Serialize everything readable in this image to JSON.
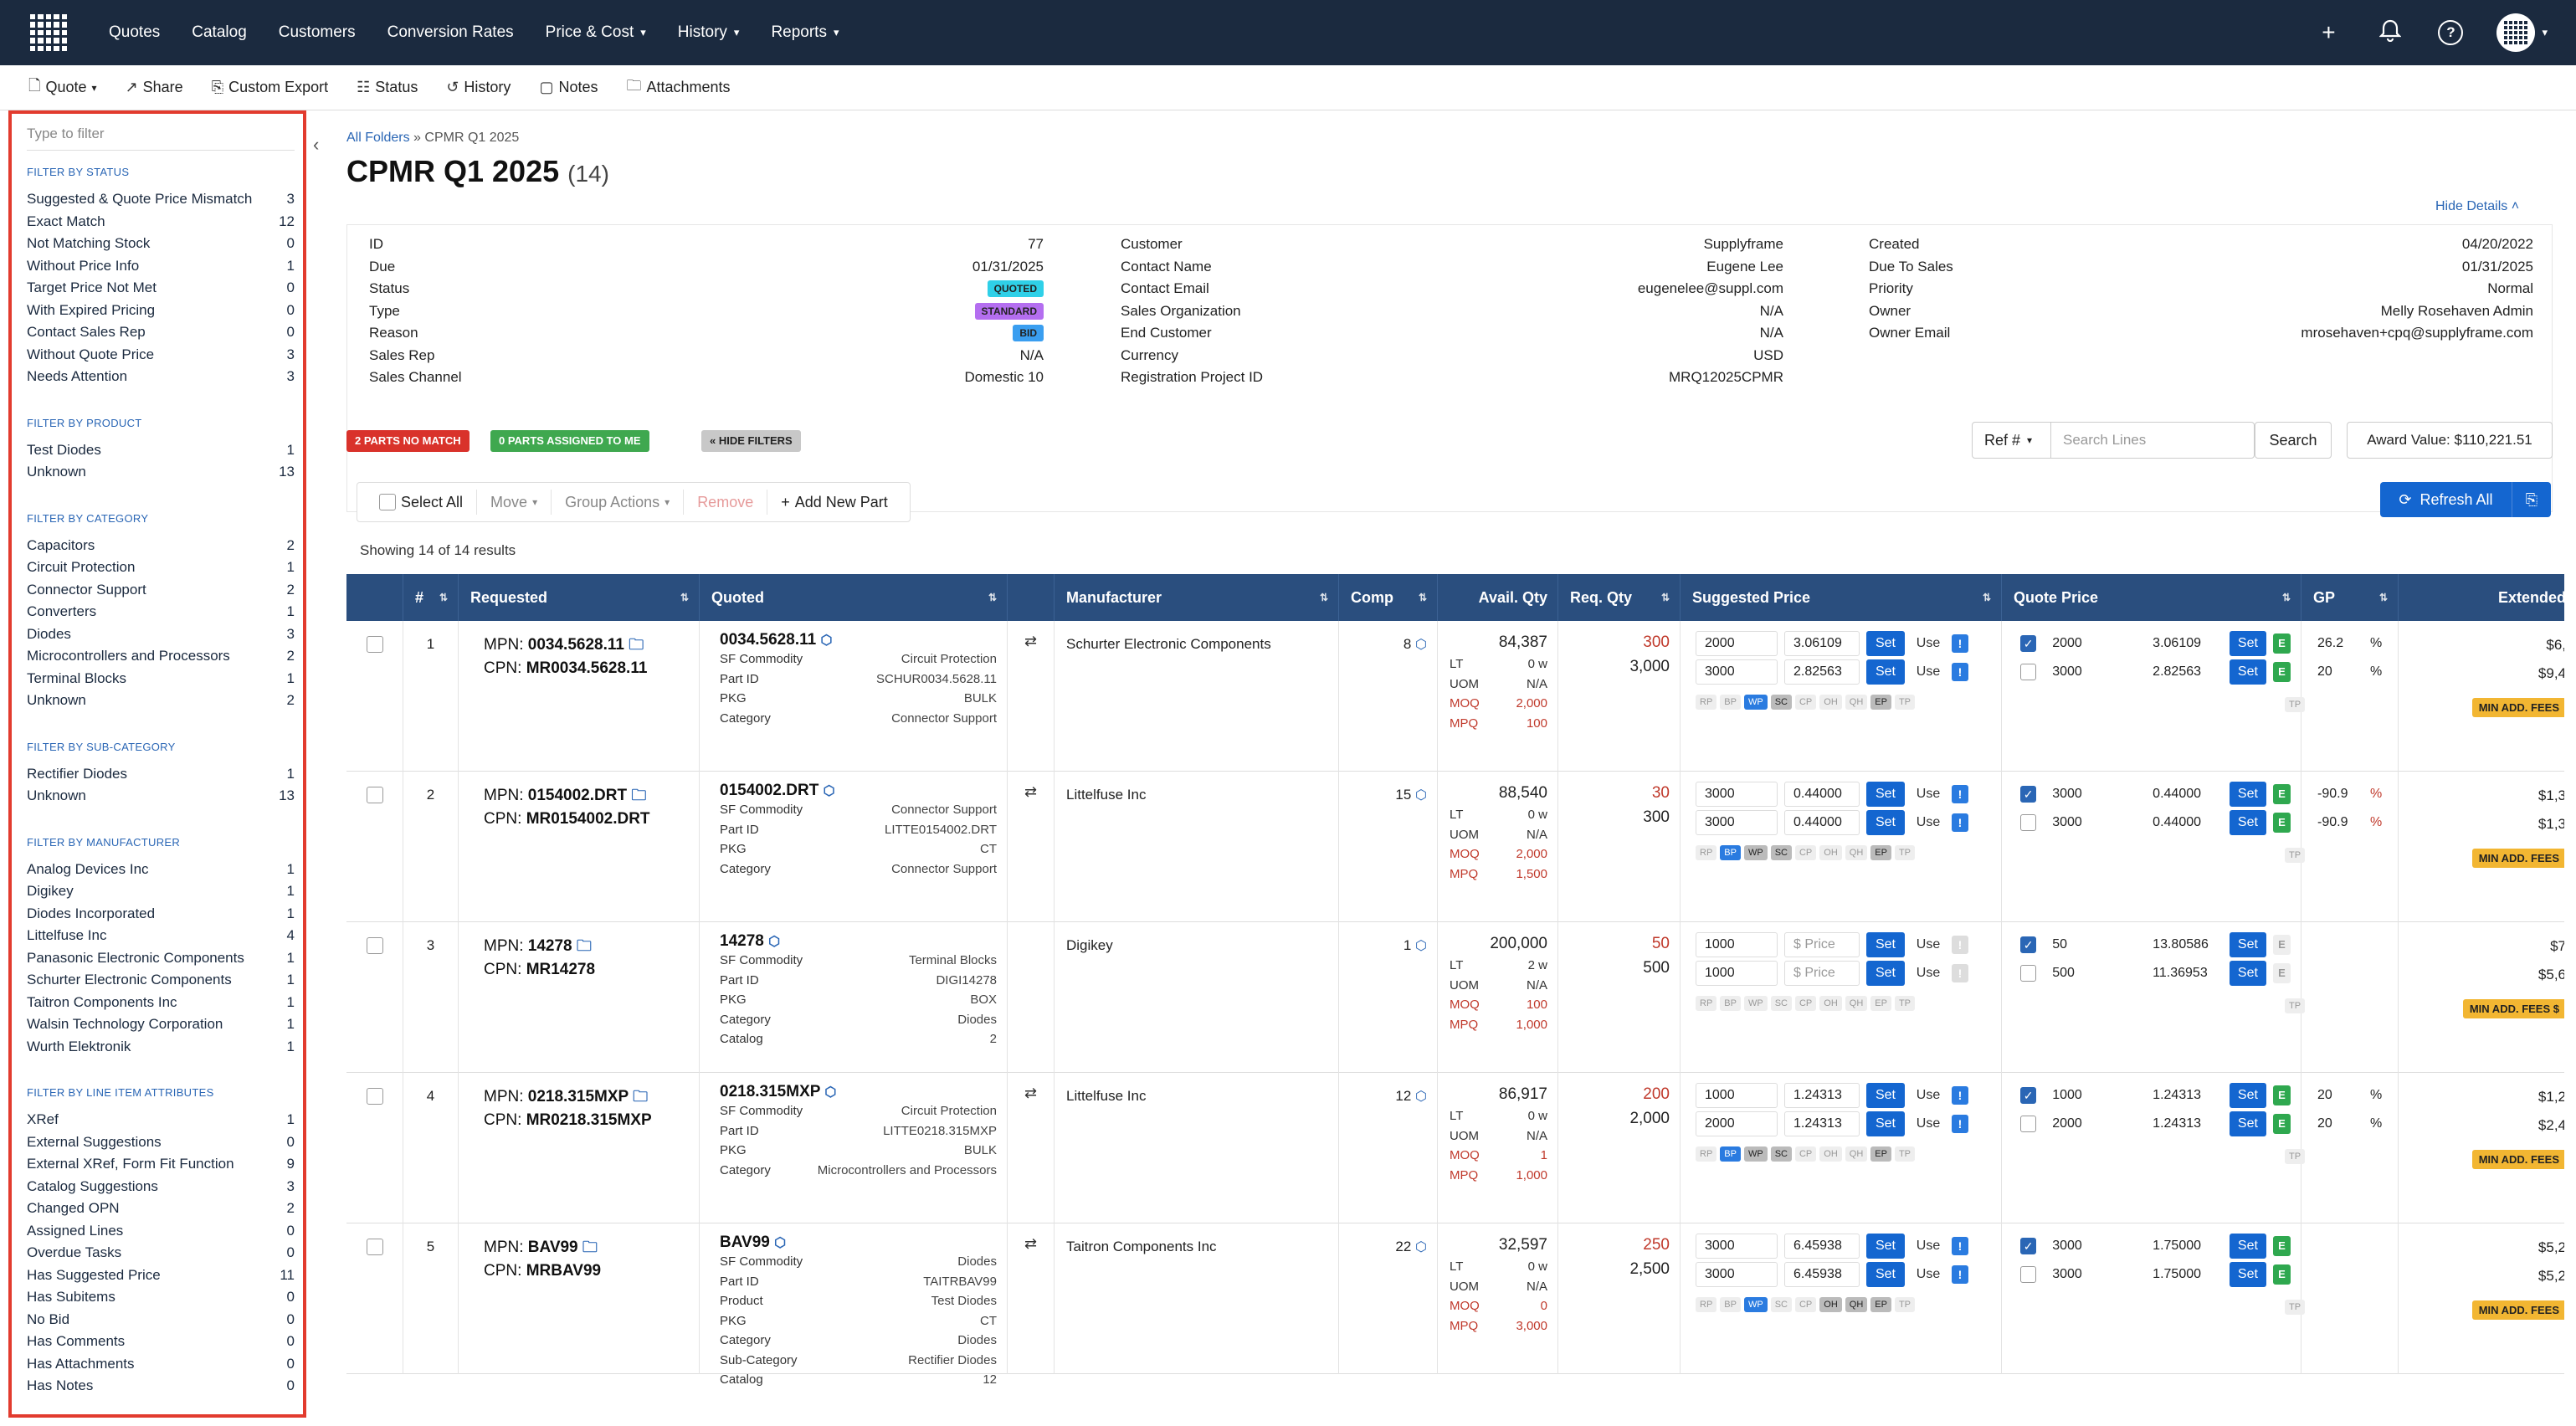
{
  "nav": {
    "items": [
      "Quotes",
      "Catalog",
      "Customers",
      "Conversion Rates"
    ],
    "dropdowns": [
      "Price & Cost",
      "History",
      "Reports"
    ]
  },
  "subbar": {
    "quote": "Quote",
    "share": "Share",
    "custom_export": "Custom Export",
    "status": "Status",
    "history": "History",
    "notes": "Notes",
    "attachments": "Attachments"
  },
  "sidebar": {
    "placeholder": "Type to filter",
    "sections": [
      {
        "title": "FILTER BY STATUS",
        "items": [
          {
            "label": "Suggested & Quote Price Mismatch",
            "count": "3"
          },
          {
            "label": "Exact Match",
            "count": "12"
          },
          {
            "label": "Not Matching Stock",
            "count": "0"
          },
          {
            "label": "Without Price Info",
            "count": "1"
          },
          {
            "label": "Target Price Not Met",
            "count": "0"
          },
          {
            "label": "With Expired Pricing",
            "count": "0"
          },
          {
            "label": "Contact Sales Rep",
            "count": "0"
          },
          {
            "label": "Without Quote Price",
            "count": "3"
          },
          {
            "label": "Needs Attention",
            "count": "3"
          }
        ]
      },
      {
        "title": "FILTER BY PRODUCT",
        "items": [
          {
            "label": "Test Diodes",
            "count": "1"
          },
          {
            "label": "Unknown",
            "count": "13"
          }
        ]
      },
      {
        "title": "FILTER BY CATEGORY",
        "items": [
          {
            "label": "Capacitors",
            "count": "2"
          },
          {
            "label": "Circuit Protection",
            "count": "1"
          },
          {
            "label": "Connector Support",
            "count": "2"
          },
          {
            "label": "Converters",
            "count": "1"
          },
          {
            "label": "Diodes",
            "count": "3"
          },
          {
            "label": "Microcontrollers and Processors",
            "count": "2"
          },
          {
            "label": "Terminal Blocks",
            "count": "1"
          },
          {
            "label": "Unknown",
            "count": "2"
          }
        ]
      },
      {
        "title": "FILTER BY SUB-CATEGORY",
        "items": [
          {
            "label": "Rectifier Diodes",
            "count": "1"
          },
          {
            "label": "Unknown",
            "count": "13"
          }
        ]
      },
      {
        "title": "FILTER BY MANUFACTURER",
        "items": [
          {
            "label": "Analog Devices Inc",
            "count": "1"
          },
          {
            "label": "Digikey",
            "count": "1"
          },
          {
            "label": "Diodes Incorporated",
            "count": "1"
          },
          {
            "label": "Littelfuse Inc",
            "count": "4"
          },
          {
            "label": "Panasonic Electronic Components",
            "count": "1"
          },
          {
            "label": "Schurter Electronic Components",
            "count": "1"
          },
          {
            "label": "Taitron Components Inc",
            "count": "1"
          },
          {
            "label": "Walsin Technology Corporation",
            "count": "1"
          },
          {
            "label": "Wurth Elektronik",
            "count": "1"
          }
        ]
      },
      {
        "title": "FILTER BY LINE ITEM ATTRIBUTES",
        "items": [
          {
            "label": "XRef",
            "count": "1"
          },
          {
            "label": "External Suggestions",
            "count": "0"
          },
          {
            "label": "External XRef, Form Fit Function",
            "count": "9"
          },
          {
            "label": "Catalog Suggestions",
            "count": "3"
          },
          {
            "label": "Changed OPN",
            "count": "2"
          },
          {
            "label": "Assigned Lines",
            "count": "0"
          },
          {
            "label": "Overdue Tasks",
            "count": "0"
          },
          {
            "label": "Has Suggested Price",
            "count": "11"
          },
          {
            "label": "Has Subitems",
            "count": "0"
          },
          {
            "label": "No Bid",
            "count": "0"
          },
          {
            "label": "Has Comments",
            "count": "0"
          },
          {
            "label": "Has Attachments",
            "count": "0"
          },
          {
            "label": "Has Notes",
            "count": "0"
          }
        ]
      }
    ]
  },
  "breadcrumb": {
    "root": "All Folders",
    "sep": "»",
    "current": "CPMR Q1 2025"
  },
  "title": {
    "name": "CPMR Q1 2025",
    "count": "(14)"
  },
  "hide_details": "Hide Details",
  "details": {
    "col1": [
      {
        "k": "ID",
        "v": "77"
      },
      {
        "k": "Due",
        "v": "01/31/2025"
      },
      {
        "k": "Status",
        "v": "QUOTED"
      },
      {
        "k": "Type",
        "v": "STANDARD"
      },
      {
        "k": "Reason",
        "v": "BID"
      },
      {
        "k": "Sales Rep",
        "v": "N/A"
      },
      {
        "k": "Sales Channel",
        "v": "Domestic 10"
      }
    ],
    "col2": [
      {
        "k": "Customer",
        "v": "Supplyframe"
      },
      {
        "k": "Contact Name",
        "v": "Eugene Lee"
      },
      {
        "k": "Contact Email",
        "v": "eugenelee@suppl.com"
      },
      {
        "k": "Sales Organization",
        "v": "N/A"
      },
      {
        "k": "End Customer",
        "v": "N/A"
      },
      {
        "k": "Currency",
        "v": "USD"
      },
      {
        "k": "Registration Project ID",
        "v": "MRQ12025CPMR"
      }
    ],
    "col3": [
      {
        "k": "Created",
        "v": "04/20/2022"
      },
      {
        "k": "Due To Sales",
        "v": "01/31/2025"
      },
      {
        "k": "Priority",
        "v": "Normal"
      },
      {
        "k": "Owner",
        "v": "Melly Rosehaven Admin"
      },
      {
        "k": "Owner Email",
        "v": "mrosehaven+cpq@supplyframe.com"
      }
    ]
  },
  "filters": {
    "no_match": "2 PARTS NO MATCH",
    "assigned": "0 PARTS ASSIGNED TO ME",
    "hide": "« HIDE FILTERS"
  },
  "search": {
    "ref": "Ref #",
    "placeholder": "Search Lines",
    "button": "Search",
    "award": "Award Value: $110,221.51"
  },
  "actions": {
    "select_all": "Select All",
    "move": "Move",
    "group": "Group Actions",
    "remove": "Remove",
    "add": "Add New Part",
    "refresh": "Refresh All"
  },
  "showing": "Showing 14 of 14 results",
  "table": {
    "headers": [
      "#",
      "Requested",
      "Quoted",
      "Manufacturer",
      "Comp",
      "Avail. Qty",
      "Req. Qty",
      "Suggested Price",
      "Quote Price",
      "GP",
      "Extended"
    ],
    "rows": [
      {
        "num": "1",
        "mpn": "0034.5628.11",
        "cpn": "MR0034.5628.11",
        "quoted": "0034.5628.11",
        "commodity": "Circuit Protection",
        "part_id": "SCHUR0034.5628.11",
        "pkg": "BULK",
        "category": "Connector Support",
        "extra": [],
        "mfr": "Schurter Electronic Components",
        "comp": "8",
        "avail": "84,387",
        "lt": "0 w",
        "uom": "N/A",
        "moq": "2,000",
        "mpq": "100",
        "req1": "300",
        "req2": "3,000",
        "sp": [
          [
            "2000",
            "3.06109"
          ],
          [
            "3000",
            "2.82563"
          ]
        ],
        "qp": [
          [
            "2000",
            "3.06109"
          ],
          [
            "3000",
            "2.82563"
          ]
        ],
        "gp": [
          "26.2",
          "20"
        ],
        "ext": [
          "$6,",
          "$9,4"
        ],
        "fee": "MIN ADD. FEES"
      },
      {
        "num": "2",
        "mpn": "0154002.DRT",
        "cpn": "MR0154002.DRT",
        "quoted": "0154002.DRT",
        "commodity": "Connector Support",
        "part_id": "LITTE0154002.DRT",
        "pkg": "CT",
        "category": "Connector Support",
        "extra": [],
        "mfr": "Littelfuse Inc",
        "comp": "15",
        "avail": "88,540",
        "lt": "0 w",
        "uom": "N/A",
        "moq": "2,000",
        "mpq": "1,500",
        "req1": "30",
        "req2": "300",
        "sp": [
          [
            "3000",
            "0.44000"
          ],
          [
            "3000",
            "0.44000"
          ]
        ],
        "qp": [
          [
            "3000",
            "0.44000"
          ],
          [
            "3000",
            "0.44000"
          ]
        ],
        "gp": [
          "-90.9",
          "-90.9"
        ],
        "ext": [
          "$1,3",
          "$1,3"
        ],
        "fee": "MIN ADD. FEES"
      },
      {
        "num": "3",
        "mpn": "14278",
        "cpn": "MR14278",
        "quoted": "14278",
        "commodity": "Terminal Blocks",
        "part_id": "DIGI14278",
        "pkg": "BOX",
        "category": "Diodes",
        "extra": [
          [
            "Catalog",
            "2"
          ]
        ],
        "mfr": "Digikey",
        "comp": "1",
        "avail": "200,000",
        "lt": "2 w",
        "uom": "N/A",
        "moq": "100",
        "mpq": "1,000",
        "req1": "50",
        "req2": "500",
        "sp": [
          [
            "1000",
            "$ Price"
          ],
          [
            "1000",
            "$ Price"
          ]
        ],
        "qp": [
          [
            "50",
            "13.80586"
          ],
          [
            "500",
            "11.36953"
          ]
        ],
        "gp": [
          "",
          ""
        ],
        "ext": [
          "$7",
          "$5,6"
        ],
        "fee": "MIN ADD. FEES $"
      },
      {
        "num": "4",
        "mpn": "0218.315MXP",
        "cpn": "MR0218.315MXP",
        "quoted": "0218.315MXP",
        "commodity": "Circuit Protection",
        "part_id": "LITTE0218.315MXP",
        "pkg": "BULK",
        "category": "Microcontrollers and Processors",
        "extra": [],
        "mfr": "Littelfuse Inc",
        "comp": "12",
        "avail": "86,917",
        "lt": "0 w",
        "uom": "N/A",
        "moq": "1",
        "mpq": "1,000",
        "req1": "200",
        "req2": "2,000",
        "sp": [
          [
            "1000",
            "1.24313"
          ],
          [
            "2000",
            "1.24313"
          ]
        ],
        "qp": [
          [
            "1000",
            "1.24313"
          ],
          [
            "2000",
            "1.24313"
          ]
        ],
        "gp": [
          "20",
          "20"
        ],
        "ext": [
          "$1,2",
          "$2,4"
        ],
        "fee": "MIN ADD. FEES"
      },
      {
        "num": "5",
        "mpn": "BAV99",
        "cpn": "MRBAV99",
        "quoted": "BAV99",
        "commodity": "Diodes",
        "part_id": "TAITRBAV99",
        "pkg": "CT",
        "category": "Diodes",
        "extra": [
          [
            "Product",
            "Test Diodes"
          ],
          [
            "Sub-Category",
            "Rectifier Diodes"
          ],
          [
            "Catalog",
            "12"
          ]
        ],
        "mfr": "Taitron Components Inc",
        "comp": "22",
        "avail": "32,597",
        "lt": "0 w",
        "uom": "N/A",
        "moq": "0",
        "mpq": "3,000",
        "req1": "250",
        "req2": "2,500",
        "sp": [
          [
            "3000",
            "6.45938"
          ],
          [
            "3000",
            "6.45938"
          ]
        ],
        "qp": [
          [
            "3000",
            "1.75000"
          ],
          [
            "3000",
            "1.75000"
          ]
        ],
        "gp": [
          "",
          ""
        ],
        "ext": [
          "$5,2",
          "$5,2"
        ],
        "fee": "MIN ADD. FEES"
      }
    ]
  },
  "labels": {
    "mpn": "MPN:",
    "cpn": "CPN:",
    "sf_commodity": "SF Commodity",
    "part_id": "Part ID",
    "pkg": "PKG",
    "category": "Category",
    "lt": "LT",
    "uom": "UOM",
    "moq": "MOQ",
    "mpq": "MPQ",
    "set": "Set",
    "use": "Use",
    "pct": "%",
    "chips": [
      "RP",
      "BP",
      "WP",
      "SC",
      "CP",
      "OH",
      "QH",
      "EP",
      "TP"
    ],
    "tp": "TP"
  },
  "colors": {
    "nav_bg": "#1b2a3f",
    "accent": "#1466d0",
    "table_head": "#2a4e7e",
    "no_match": "#d9322b",
    "assigned": "#3fa84f",
    "fee": "#f2b632",
    "highlight_border": "#e23b2e"
  }
}
